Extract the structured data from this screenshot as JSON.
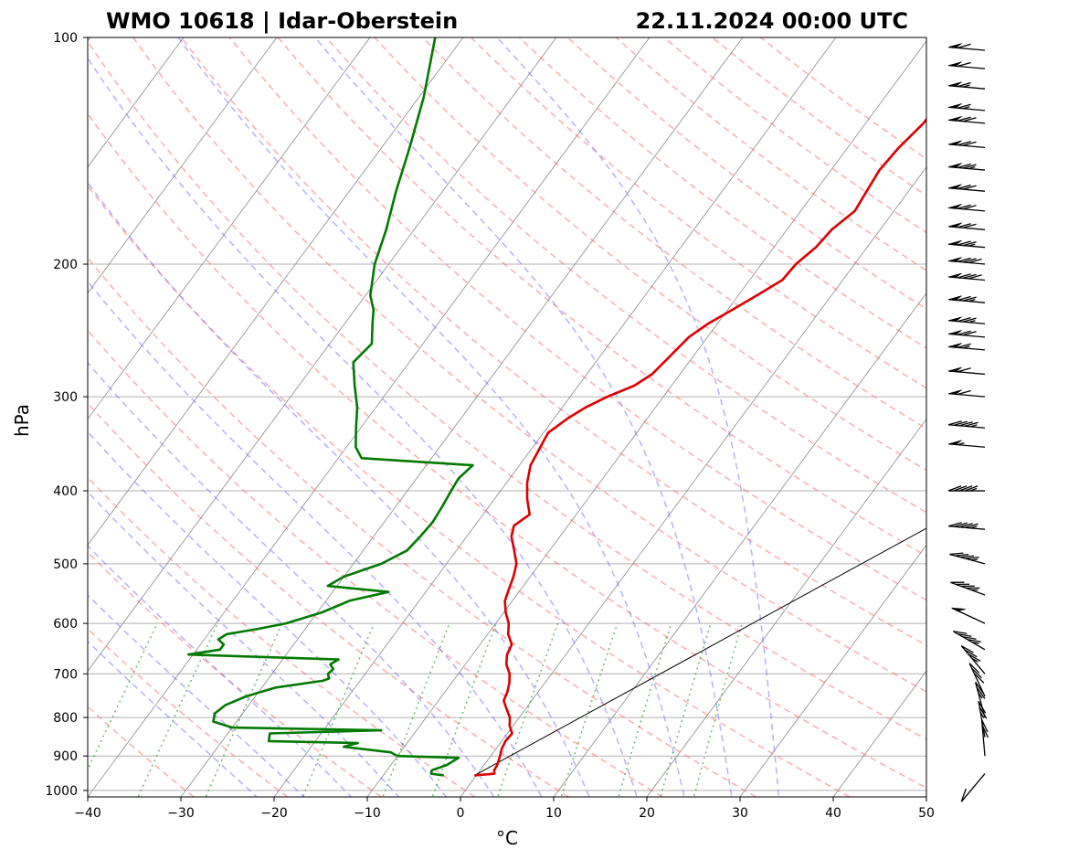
{
  "title_left": "WMO 10618 | Idar-Oberstein",
  "title_right": "22.11.2024 00:00 UTC",
  "chart_data": {
    "type": "line",
    "chart_kind": "skew-T log-p sounding",
    "xlabel": "°C",
    "ylabel": "hPa",
    "xlim": [
      -40,
      50
    ],
    "ylim": [
      1020,
      100
    ],
    "y_scale": "log",
    "x_ticks": [
      "−40",
      "−30",
      "−20",
      "−10",
      "0",
      "10",
      "20",
      "30",
      "40",
      "50"
    ],
    "y_ticks": [
      "100",
      "200",
      "300",
      "400",
      "500",
      "600",
      "700",
      "800",
      "900",
      "1000"
    ],
    "grid": true,
    "colors": {
      "temperature": "#dd0000",
      "dewpoint": "#007a00",
      "isotherms": "#888888",
      "dry_adiabats": "#ff6666",
      "moist_adiabats": "#6666ff",
      "mixing_ratio": "#33aa33"
    },
    "series": [
      {
        "key": "temperature",
        "points": [
          [
            955,
            -0.2
          ],
          [
            950,
            1.8
          ],
          [
            940,
            1.5
          ],
          [
            925,
            1.4
          ],
          [
            900,
            1.0
          ],
          [
            880,
            0.6
          ],
          [
            860,
            0.4
          ],
          [
            840,
            0.5
          ],
          [
            820,
            -0.4
          ],
          [
            800,
            -1.0
          ],
          [
            780,
            -2.0
          ],
          [
            760,
            -3.0
          ],
          [
            740,
            -3.3
          ],
          [
            720,
            -3.8
          ],
          [
            700,
            -4.5
          ],
          [
            680,
            -5.6
          ],
          [
            660,
            -6.3
          ],
          [
            640,
            -6.6
          ],
          [
            620,
            -7.8
          ],
          [
            600,
            -8.6
          ],
          [
            580,
            -9.8
          ],
          [
            560,
            -10.8
          ],
          [
            540,
            -11.3
          ],
          [
            520,
            -11.8
          ],
          [
            500,
            -12.5
          ],
          [
            480,
            -13.8
          ],
          [
            460,
            -15.2
          ],
          [
            445,
            -15.8
          ],
          [
            430,
            -15.0
          ],
          [
            410,
            -16.5
          ],
          [
            390,
            -17.8
          ],
          [
            370,
            -18.8
          ],
          [
            350,
            -19.2
          ],
          [
            335,
            -19.5
          ],
          [
            320,
            -18.5
          ],
          [
            310,
            -17.5
          ],
          [
            300,
            -16.0
          ],
          [
            290,
            -14.0
          ],
          [
            280,
            -13.0
          ],
          [
            265,
            -12.5
          ],
          [
            250,
            -12.0
          ],
          [
            240,
            -11.0
          ],
          [
            230,
            -9.5
          ],
          [
            220,
            -8.0
          ],
          [
            210,
            -6.5
          ],
          [
            200,
            -6.3
          ],
          [
            190,
            -5.5
          ],
          [
            180,
            -5.2
          ],
          [
            170,
            -4.2
          ],
          [
            160,
            -4.5
          ],
          [
            150,
            -4.8
          ],
          [
            140,
            -4.5
          ],
          [
            130,
            -3.8
          ],
          [
            120,
            -3.7
          ],
          [
            110,
            -3.3
          ],
          [
            100,
            -3.5
          ]
        ]
      },
      {
        "key": "dewpoint",
        "points": [
          [
            955,
            -3.5
          ],
          [
            950,
            -5.0
          ],
          [
            940,
            -5.2
          ],
          [
            925,
            -4.0
          ],
          [
            905,
            -3.3
          ],
          [
            900,
            -10.0
          ],
          [
            890,
            -11.0
          ],
          [
            875,
            -16.5
          ],
          [
            865,
            -15.3
          ],
          [
            860,
            -25.0
          ],
          [
            840,
            -25.5
          ],
          [
            832,
            -13.8
          ],
          [
            825,
            -30.0
          ],
          [
            810,
            -32.5
          ],
          [
            790,
            -33.0
          ],
          [
            770,
            -32.5
          ],
          [
            750,
            -31.0
          ],
          [
            730,
            -28.5
          ],
          [
            715,
            -24.0
          ],
          [
            710,
            -23.5
          ],
          [
            700,
            -24.0
          ],
          [
            690,
            -23.8
          ],
          [
            680,
            -24.5
          ],
          [
            670,
            -24.0
          ],
          [
            660,
            -40.5
          ],
          [
            650,
            -37.5
          ],
          [
            640,
            -37.5
          ],
          [
            630,
            -38.5
          ],
          [
            620,
            -38.0
          ],
          [
            610,
            -35.0
          ],
          [
            600,
            -32.5
          ],
          [
            580,
            -29.5
          ],
          [
            560,
            -27.5
          ],
          [
            545,
            -24.0
          ],
          [
            535,
            -31.0
          ],
          [
            520,
            -30.0
          ],
          [
            500,
            -27.0
          ],
          [
            480,
            -25.3
          ],
          [
            460,
            -25.0
          ],
          [
            440,
            -24.8
          ],
          [
            420,
            -25.0
          ],
          [
            400,
            -25.3
          ],
          [
            385,
            -25.5
          ],
          [
            370,
            -25.0
          ],
          [
            362,
            -37.5
          ],
          [
            350,
            -39.0
          ],
          [
            330,
            -40.5
          ],
          [
            310,
            -42.0
          ],
          [
            290,
            -44.0
          ],
          [
            270,
            -46.0
          ],
          [
            255,
            -45.5
          ],
          [
            240,
            -47.0
          ],
          [
            230,
            -48.0
          ],
          [
            220,
            -49.5
          ],
          [
            200,
            -51.5
          ],
          [
            180,
            -53.0
          ],
          [
            160,
            -55.0
          ],
          [
            140,
            -57.0
          ],
          [
            120,
            -59.5
          ],
          [
            100,
            -63.0
          ]
        ]
      }
    ],
    "parcel": [
      [
        955,
        -0.2
      ],
      [
        250,
        51
      ]
    ],
    "wind_barbs": [
      {
        "p": 950,
        "dir": 220,
        "kt": 10
      },
      {
        "p": 900,
        "dir": 355,
        "kt": 20
      },
      {
        "p": 850,
        "dir": 350,
        "kt": 25
      },
      {
        "p": 800,
        "dir": 345,
        "kt": 25
      },
      {
        "p": 750,
        "dir": 335,
        "kt": 30
      },
      {
        "p": 700,
        "dir": 320,
        "kt": 35
      },
      {
        "p": 650,
        "dir": 300,
        "kt": 45
      },
      {
        "p": 600,
        "dir": 295,
        "kt": 50
      },
      {
        "p": 550,
        "dir": 290,
        "kt": 45
      },
      {
        "p": 500,
        "dir": 285,
        "kt": 45
      },
      {
        "p": 450,
        "dir": 275,
        "kt": 45
      },
      {
        "p": 400,
        "dir": 270,
        "kt": 45
      },
      {
        "p": 350,
        "dir": 275,
        "kt": 55
      },
      {
        "p": 330,
        "dir": 275,
        "kt": 45
      },
      {
        "p": 300,
        "dir": 275,
        "kt": 60
      },
      {
        "p": 280,
        "dir": 275,
        "kt": 60
      },
      {
        "p": 260,
        "dir": 275,
        "kt": 65
      },
      {
        "p": 250,
        "dir": 275,
        "kt": 70
      },
      {
        "p": 240,
        "dir": 275,
        "kt": 75
      },
      {
        "p": 225,
        "dir": 275,
        "kt": 75
      },
      {
        "p": 210,
        "dir": 275,
        "kt": 80
      },
      {
        "p": 200,
        "dir": 275,
        "kt": 80
      },
      {
        "p": 190,
        "dir": 275,
        "kt": 75
      },
      {
        "p": 180,
        "dir": 275,
        "kt": 70
      },
      {
        "p": 170,
        "dir": 275,
        "kt": 70
      },
      {
        "p": 160,
        "dir": 275,
        "kt": 70
      },
      {
        "p": 150,
        "dir": 275,
        "kt": 75
      },
      {
        "p": 140,
        "dir": 275,
        "kt": 70
      },
      {
        "p": 130,
        "dir": 275,
        "kt": 70
      },
      {
        "p": 125,
        "dir": 275,
        "kt": 65
      },
      {
        "p": 117,
        "dir": 275,
        "kt": 65
      },
      {
        "p": 110,
        "dir": 275,
        "kt": 60
      },
      {
        "p": 104,
        "dir": 275,
        "kt": 60
      }
    ]
  }
}
